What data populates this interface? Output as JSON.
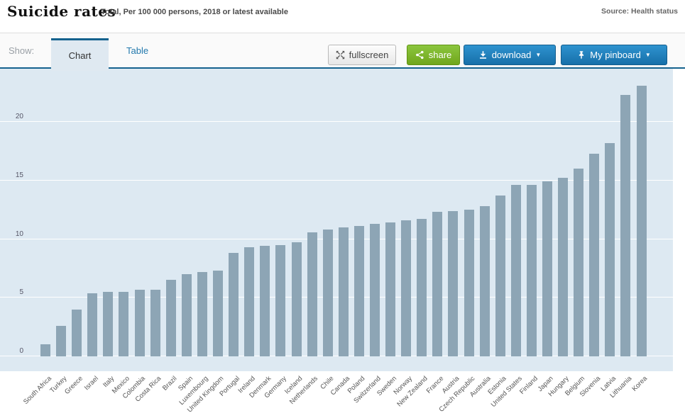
{
  "header": {
    "title": "Suicide rates",
    "subtitle": "Total, Per 100 000 persons, 2018 or latest available",
    "source": "Source: Health status"
  },
  "toolbar": {
    "show_label": "Show:",
    "tabs": [
      {
        "label": "Chart",
        "active": true
      },
      {
        "label": "Table",
        "active": false
      }
    ],
    "buttons": {
      "fullscreen": "fullscreen",
      "share": "share",
      "download": "download",
      "pinboard": "My pinboard",
      "caret": "▼"
    }
  },
  "colors": {
    "accent_blue": "#15628e",
    "link_blue": "#2379ad",
    "button_blue": "#1f7fb8",
    "button_green": "#7ab520",
    "bar_color": "#8da5b5",
    "plot_background": "#dde9f2"
  },
  "chart_data": {
    "type": "bar",
    "title": "Suicide rates",
    "subtitle": "Total, Per 100 000 persons, 2018 or latest available",
    "xlabel": "",
    "ylabel": "",
    "ylim": [
      0,
      24.5
    ],
    "yticks": [
      0,
      5,
      10,
      15,
      20
    ],
    "grid": true,
    "legend_position": "none",
    "categories": [
      "South Africa",
      "Turkey",
      "Greece",
      "Israel",
      "Italy",
      "Mexico",
      "Colombia",
      "Costa Rica",
      "Brazil",
      "Spain",
      "Luxembourg",
      "United Kingdom",
      "Portugal",
      "Ireland",
      "Denmark",
      "Germany",
      "Iceland",
      "Netherlands",
      "Chile",
      "Canada",
      "Poland",
      "Switzerland",
      "Sweden",
      "Norway",
      "New Zealand",
      "France",
      "Austria",
      "Czech Republic",
      "Australia",
      "Estonia",
      "United States",
      "Finland",
      "Japan",
      "Hungary",
      "Belgium",
      "Slovenia",
      "Latvia",
      "Lithuania",
      "Korea"
    ],
    "values": [
      1.0,
      2.6,
      4.0,
      5.4,
      5.5,
      5.5,
      5.7,
      5.7,
      6.5,
      7.0,
      7.2,
      7.3,
      8.8,
      9.3,
      9.4,
      9.5,
      9.7,
      10.6,
      10.8,
      11.0,
      11.1,
      11.3,
      11.4,
      11.6,
      11.7,
      12.3,
      12.4,
      12.5,
      12.8,
      13.7,
      14.6,
      14.6,
      14.9,
      15.2,
      16.0,
      17.3,
      18.2,
      22.3,
      23.1
    ]
  }
}
